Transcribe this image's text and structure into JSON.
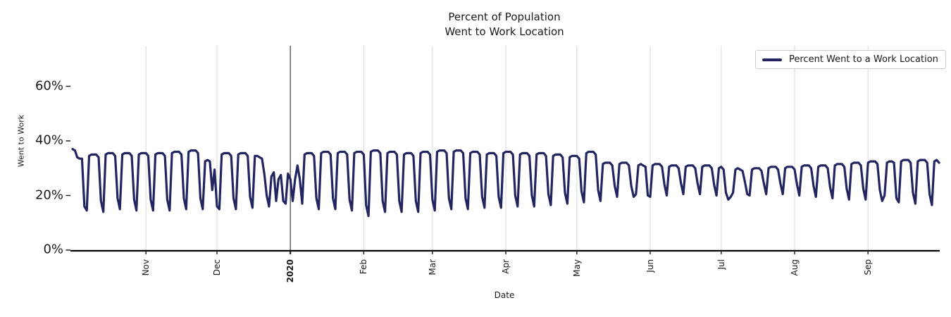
{
  "window": {
    "background": "#ffffff"
  },
  "chart_data": {
    "type": "line",
    "title_lines": [
      "Percent of Population",
      "Went to Work Location"
    ],
    "xlabel": "Date",
    "ylabel": "Went to Work",
    "grid": "vertical-only",
    "ylim": [
      0,
      75
    ],
    "yticks": [
      {
        "value": 0,
        "label": "0%"
      },
      {
        "value": 20,
        "label": "20%"
      },
      {
        "value": 40,
        "label": "40%"
      },
      {
        "value": 60,
        "label": "60%"
      }
    ],
    "x_span_days": 366,
    "xticks": [
      {
        "day": 31,
        "label": "Nov",
        "bold": false
      },
      {
        "day": 61,
        "label": "Dec",
        "bold": false
      },
      {
        "day": 92,
        "label": "2020",
        "bold": true
      },
      {
        "day": 123,
        "label": "Feb",
        "bold": false
      },
      {
        "day": 152,
        "label": "Mar",
        "bold": false
      },
      {
        "day": 183,
        "label": "Apr",
        "bold": false
      },
      {
        "day": 213,
        "label": "May",
        "bold": false
      },
      {
        "day": 244,
        "label": "Jun",
        "bold": false
      },
      {
        "day": 274,
        "label": "Jul",
        "bold": false
      },
      {
        "day": 305,
        "label": "Aug",
        "bold": false
      },
      {
        "day": 336,
        "label": "Sep",
        "bold": false
      }
    ],
    "vline": {
      "day": 92,
      "color": "#4d4d4d"
    },
    "colors": {
      "line": "#232560",
      "grid": "#dcdcdc",
      "axis": "#000000",
      "tick": "#262626",
      "legend_border": "#cccccc"
    },
    "legend": {
      "position": "upper right",
      "entries": [
        {
          "label": "Percent Went to a Work Location",
          "color": "#232560"
        }
      ]
    },
    "series": [
      {
        "name": "Percent Went to a Work Location",
        "unit": "percent",
        "cadence": "daily (weekly work-week cycle: weekday plateau = p, weekend trough = t)",
        "default_week_shape": {
          "weekday_deltas": [
            -0.5,
            0,
            0,
            0,
            -1
          ],
          "saturday_above_trough": 4
        },
        "weeks": [
          {
            "days": [
              37,
              36.5,
              34,
              33.5,
              33.5,
              16,
              14.5
            ]
          },
          {
            "p": 35,
            "t": 14
          },
          {
            "p": 35.5,
            "t": 15
          },
          {
            "p": 35.5,
            "t": 14.5
          },
          {
            "p": 35.5,
            "t": 14.5
          },
          {
            "p": 35.5,
            "t": 14.5
          },
          {
            "p": 36,
            "t": 15
          },
          {
            "p": 36.5,
            "t": 15
          },
          {
            "days": [
              32.5,
              33,
              32.5,
              22,
              29.5,
              16,
              15
            ]
          },
          {
            "p": 35.5,
            "t": 15
          },
          {
            "p": 35.5,
            "t": 15.5
          },
          {
            "days": [
              34.5,
              34.5,
              34,
              33.5,
              28,
              20,
              16
            ]
          },
          {
            "days": [
              27,
              28.5,
              18,
              26,
              27.5,
              18,
              17
            ]
          },
          {
            "days": [
              28,
              26,
              18,
              26,
              31,
              26,
              17
            ]
          },
          {
            "p": 35.5,
            "t": 15
          },
          {
            "p": 36,
            "t": 15
          },
          {
            "p": 36,
            "t": 14.5
          },
          {
            "p": 36,
            "t": 12.5
          },
          {
            "p": 36.5,
            "t": 14
          },
          {
            "p": 36,
            "t": 14
          },
          {
            "p": 35.5,
            "t": 14
          },
          {
            "p": 36,
            "t": 14.5
          },
          {
            "p": 36.5,
            "t": 15
          },
          {
            "p": 36.5,
            "t": 15
          },
          {
            "p": 36,
            "t": 15.5
          },
          {
            "p": 35.5,
            "t": 15.5
          },
          {
            "p": 36,
            "t": 16
          },
          {
            "p": 35.5,
            "t": 16
          },
          {
            "p": 35.5,
            "t": 16.5
          },
          {
            "p": 35,
            "t": 17
          },
          {
            "p": 34.5,
            "t": 17.5
          },
          {
            "p": 36,
            "t": 18
          },
          {
            "p": 32,
            "t": 19.5
          },
          {
            "p": 32,
            "t": 19.5
          },
          {
            "days": [
              20.5,
              31,
              31.5,
              31,
              30.5,
              20,
              19.5
            ]
          },
          {
            "p": 31.5,
            "t": 20
          },
          {
            "p": 31,
            "t": 20.5
          },
          {
            "p": 31,
            "t": 20.5
          },
          {
            "p": 31,
            "t": 20
          },
          {
            "days": [
              30,
              30.5,
              29.5,
              21,
              18.5,
              19.5,
              21
            ]
          },
          {
            "days": [
              29.5,
              30,
              29.5,
              29,
              25,
              20.5,
              20
            ]
          },
          {
            "p": 30,
            "t": 20.5
          },
          {
            "p": 30.5,
            "t": 20.5
          },
          {
            "p": 30.5,
            "t": 20
          },
          {
            "p": 31,
            "t": 19.5
          },
          {
            "p": 31,
            "t": 19
          },
          {
            "p": 31.5,
            "t": 18.5
          },
          {
            "p": 32,
            "t": 18.5
          },
          {
            "p": 32.5,
            "t": 18
          },
          {
            "days": [
              20,
              32,
              32.5,
              32.5,
              32,
              19,
              17.5
            ]
          },
          {
            "p": 33,
            "t": 17
          },
          {
            "p": 33,
            "t": 16.5
          },
          {
            "days": [
              32.5,
              33,
              32
            ]
          }
        ]
      }
    ]
  }
}
